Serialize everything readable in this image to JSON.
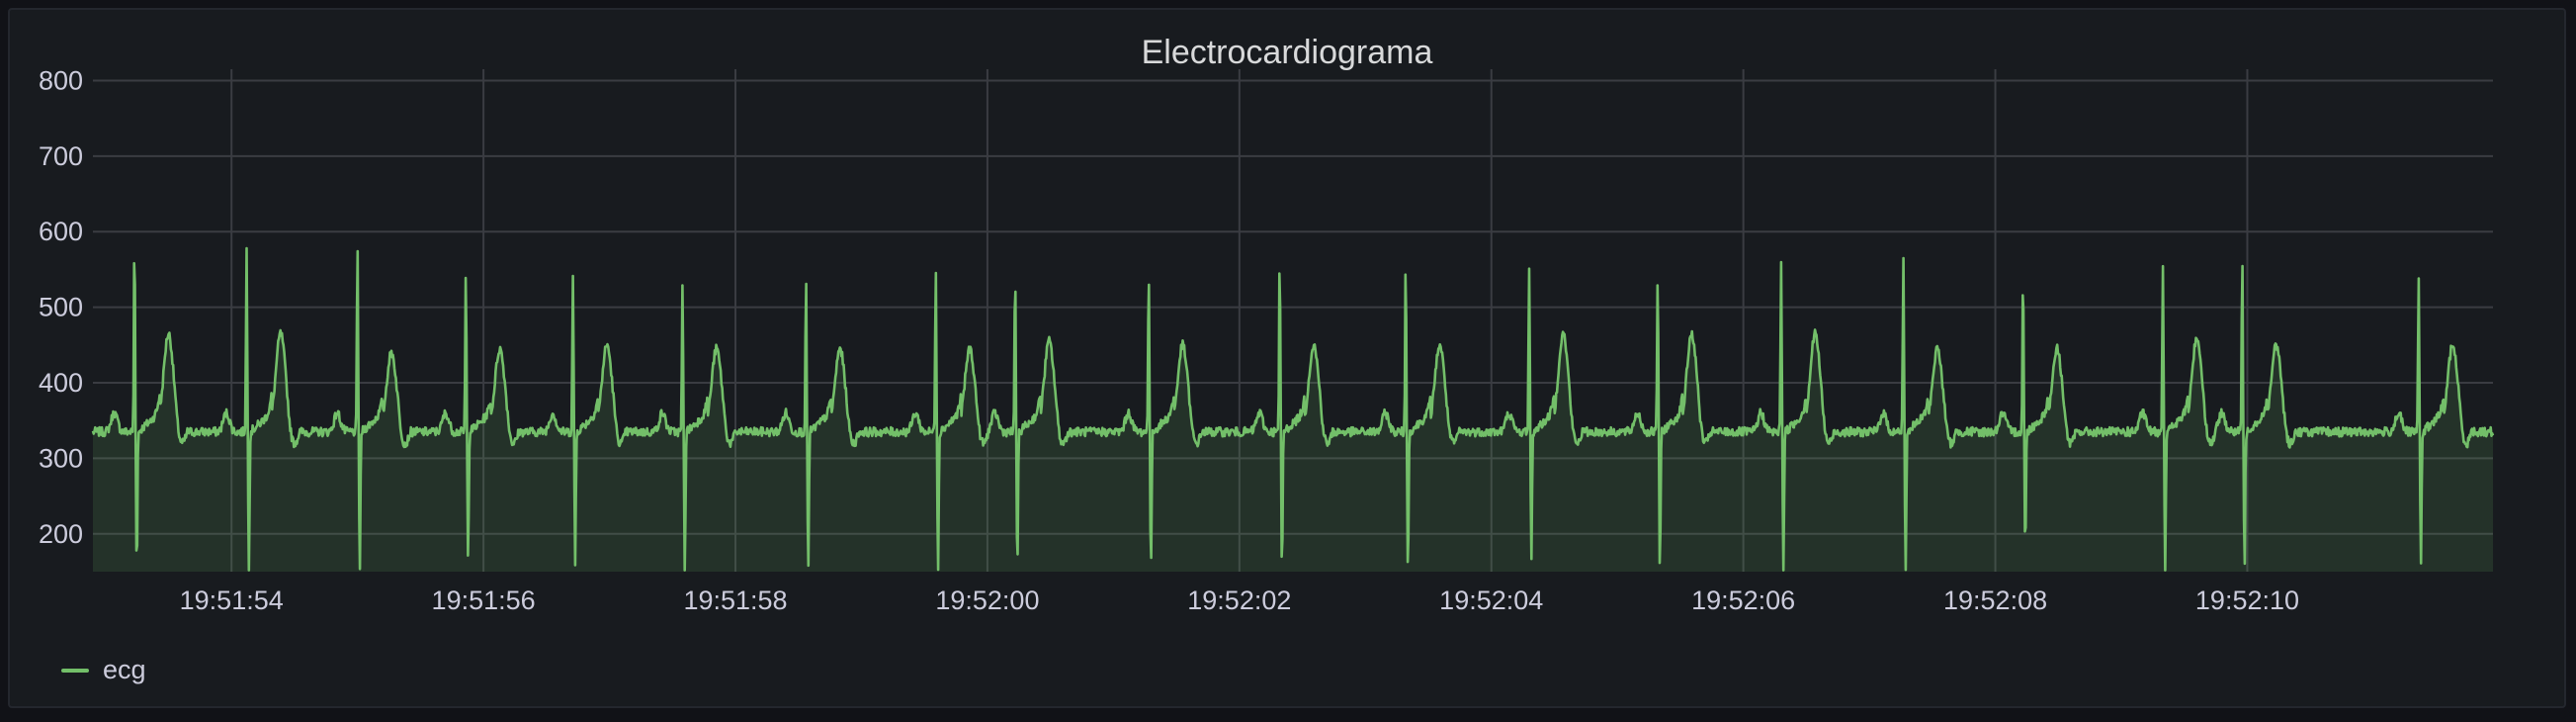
{
  "panel": {
    "title": "Electrocardiograma"
  },
  "chart_data": {
    "type": "area",
    "title": "Electrocardiograma",
    "xlabel": "",
    "ylabel": "",
    "ylim": [
      150,
      815
    ],
    "y_ticks": [
      200,
      300,
      400,
      500,
      600,
      700,
      800
    ],
    "x_start": "19:51:52.90",
    "x_end": "19:52:11.95",
    "x_range_seconds": [
      52.9,
      71.95
    ],
    "x_ticks": [
      {
        "label": "19:51:54",
        "t": 54
      },
      {
        "label": "19:51:56",
        "t": 56
      },
      {
        "label": "19:51:58",
        "t": 58
      },
      {
        "label": "19:52:00",
        "t": 60
      },
      {
        "label": "19:52:02",
        "t": 62
      },
      {
        "label": "19:52:04",
        "t": 64
      },
      {
        "label": "19:52:06",
        "t": 66
      },
      {
        "label": "19:52:08",
        "t": 68
      },
      {
        "label": "19:52:10",
        "t": 70
      }
    ],
    "grid": true,
    "legend_position": "bottom-left",
    "series": [
      {
        "name": "ecg",
        "color": "#73bf69",
        "baseline": 335,
        "beats": [
          {
            "t": 53.23,
            "r": 595,
            "s": 155,
            "tw": 480
          },
          {
            "t": 54.12,
            "r": 580,
            "s": 150,
            "tw": 480
          },
          {
            "t": 55.0,
            "r": 585,
            "s": 150,
            "tw": 455
          },
          {
            "t": 55.86,
            "r": 545,
            "s": 170,
            "tw": 460
          },
          {
            "t": 56.71,
            "r": 540,
            "s": 160,
            "tw": 465
          },
          {
            "t": 57.58,
            "r": 530,
            "s": 150,
            "tw": 460
          },
          {
            "t": 58.56,
            "r": 535,
            "s": 150,
            "tw": 460
          },
          {
            "t": 59.59,
            "r": 560,
            "s": 150,
            "tw": 460
          },
          {
            "t": 60.22,
            "r": 550,
            "s": 150,
            "tw": 470
          },
          {
            "t": 61.28,
            "r": 555,
            "s": 150,
            "tw": 465
          },
          {
            "t": 62.32,
            "r": 565,
            "s": 150,
            "tw": 465
          },
          {
            "t": 63.32,
            "r": 560,
            "s": 150,
            "tw": 465
          },
          {
            "t": 64.3,
            "r": 555,
            "s": 165,
            "tw": 480
          },
          {
            "t": 65.32,
            "r": 545,
            "s": 150,
            "tw": 480
          },
          {
            "t": 66.3,
            "r": 565,
            "s": 150,
            "tw": 480
          },
          {
            "t": 67.27,
            "r": 575,
            "s": 150,
            "tw": 460
          },
          {
            "t": 68.22,
            "r": 545,
            "s": 180,
            "tw": 460
          },
          {
            "t": 69.33,
            "r": 560,
            "s": 150,
            "tw": 475
          },
          {
            "t": 69.96,
            "r": 570,
            "s": 150,
            "tw": 465
          },
          {
            "t": 71.36,
            "r": 545,
            "s": 155,
            "tw": 465
          }
        ]
      }
    ]
  },
  "legend": {
    "items": [
      {
        "label": "ecg",
        "color": "#73bf69"
      }
    ]
  }
}
